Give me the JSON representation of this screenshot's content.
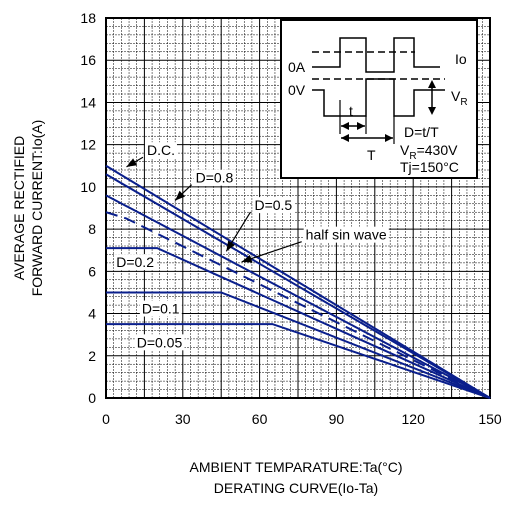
{
  "chart_data": {
    "type": "line",
    "xlabel": "AMBIENT TEMPARATURE:Ta(°C)",
    "subtitle": "DERATING CURVE(Io-Ta)",
    "ylabel_line1": "AVERAGE RECTIFIED",
    "ylabel_line2": "FORWARD CURRENT:Io(A)",
    "xlim": [
      0,
      150
    ],
    "ylim": [
      0,
      18
    ],
    "x_ticks": [
      "0",
      "30",
      "60",
      "90",
      "120",
      "150"
    ],
    "y_ticks": [
      "0",
      "2",
      "4",
      "6",
      "8",
      "10",
      "12",
      "14",
      "16",
      "18"
    ],
    "grid": true,
    "series": [
      {
        "name": "D.C.",
        "style": "solid",
        "x": [
          0,
          150
        ],
        "y": [
          11.0,
          0
        ]
      },
      {
        "name": "D=0.8",
        "style": "solid",
        "x": [
          0,
          150
        ],
        "y": [
          10.6,
          0
        ]
      },
      {
        "name": "D=0.5",
        "style": "solid",
        "x": [
          0,
          150
        ],
        "y": [
          9.6,
          0
        ]
      },
      {
        "name": "half sin wave",
        "style": "dashed",
        "x": [
          0,
          8,
          150
        ],
        "y": [
          8.8,
          8.5,
          0
        ]
      },
      {
        "name": "D=0.2",
        "style": "solid",
        "x": [
          0,
          20,
          150
        ],
        "y": [
          7.1,
          7.1,
          0
        ]
      },
      {
        "name": "D=0.1",
        "style": "solid",
        "x": [
          0,
          45,
          150
        ],
        "y": [
          5.0,
          5.0,
          0
        ]
      },
      {
        "name": "D=0.05",
        "style": "solid",
        "x": [
          0,
          65,
          150
        ],
        "y": [
          3.5,
          3.5,
          0
        ]
      }
    ],
    "annotations": [
      {
        "text": "D.C.",
        "x": 16,
        "y": 11.5,
        "ax": 8,
        "ay": 10.95
      },
      {
        "text": "D=0.8",
        "x": 35,
        "y": 10.2,
        "ax": 27,
        "ay": 9.35
      },
      {
        "text": "D=0.5",
        "x": 58,
        "y": 8.9,
        "ax": 47,
        "ay": 6.95
      },
      {
        "text": "half sin wave",
        "x": 78,
        "y": 7.5,
        "ax": 53,
        "ay": 6.45
      },
      {
        "text": "D=0.2",
        "x": 4,
        "y": 6.2
      },
      {
        "text": "D=0.1",
        "x": 14,
        "y": 4.0
      },
      {
        "text": "D=0.05",
        "x": 12,
        "y": 2.4
      }
    ],
    "inset": {
      "io_label": "Io",
      "zero_a": "0A",
      "zero_v": "0V",
      "vr_main": "V",
      "vr_sub": "R",
      "t_label": "t",
      "T_label": "T",
      "duty": "D=t/T",
      "vr_value_main": "V",
      "vr_value_sub": "R",
      "vr_value_rest": "=430V",
      "tj": "Tj=150°C"
    }
  }
}
